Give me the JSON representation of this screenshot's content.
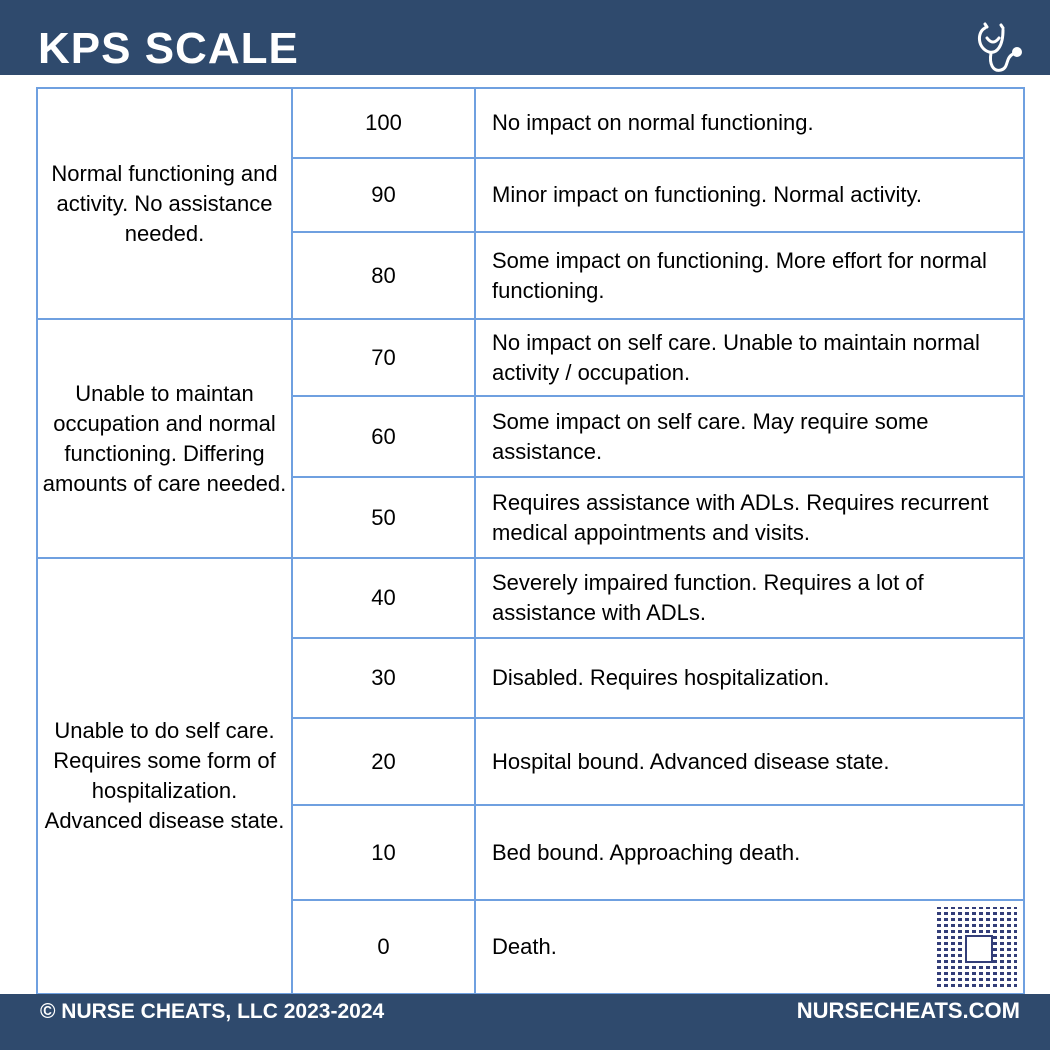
{
  "header": {
    "title": "KPS SCALE",
    "logo_icon": "stethoscope-icon"
  },
  "groups": [
    {
      "label": "Normal functioning and activity. No assistance needed.",
      "rows": [
        {
          "score": "100",
          "description": "No impact on normal functioning."
        },
        {
          "score": "90",
          "description": "Minor impact on functioning. Normal activity."
        },
        {
          "score": "80",
          "description": "Some impact on functioning. More effort for normal functioning."
        }
      ]
    },
    {
      "label": "Unable to maintan occupation and normal functioning. Differing amounts of care needed.",
      "rows": [
        {
          "score": "70",
          "description": "No impact on self care. Unable to maintain normal activity / occupation."
        },
        {
          "score": "60",
          "description": "Some impact on self care.  May require some assistance."
        },
        {
          "score": "50",
          "description": "Requires assistance with ADLs.  Requires recurrent medical appointments and visits."
        }
      ]
    },
    {
      "label": "Unable to do self care. Requires some form of hospitalization. Advanced disease state.",
      "rows": [
        {
          "score": "40",
          "description": "Severely impaired function.  Requires a lot of assistance with ADLs."
        },
        {
          "score": "30",
          "description": "Disabled.  Requires hospitalization."
        },
        {
          "score": "20",
          "description": "Hospital bound. Advanced disease state."
        },
        {
          "score": "10",
          "description": "Bed bound.  Approaching death."
        },
        {
          "score": "0",
          "description": "Death."
        }
      ]
    }
  ],
  "footer": {
    "copyright": "© NURSE CHEATS, LLC 2023-2024",
    "website": "NURSECHEATS.COM"
  },
  "colors": {
    "brand": "#2f4a6d",
    "border": "#6fa0e0"
  }
}
